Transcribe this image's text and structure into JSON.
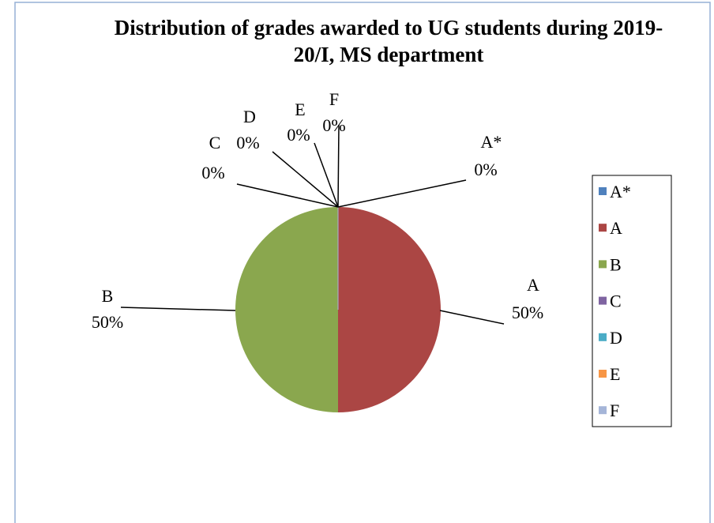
{
  "chart_data": {
    "type": "pie",
    "title": "Distribution of grades awarded to UG students during 2019-20/I, MS department",
    "categories": [
      "A*",
      "A",
      "B",
      "C",
      "D",
      "E",
      "F"
    ],
    "values": [
      0,
      50,
      50,
      0,
      0,
      0,
      0
    ],
    "value_labels": [
      "0%",
      "50%",
      "50%",
      "0%",
      "0%",
      "0%",
      "0%"
    ],
    "colors": [
      "#4f81bd",
      "#ab4644",
      "#8aa74e",
      "#7f64a1",
      "#4bacc6",
      "#f79646",
      "#a5b5d8"
    ],
    "legend": "right"
  }
}
